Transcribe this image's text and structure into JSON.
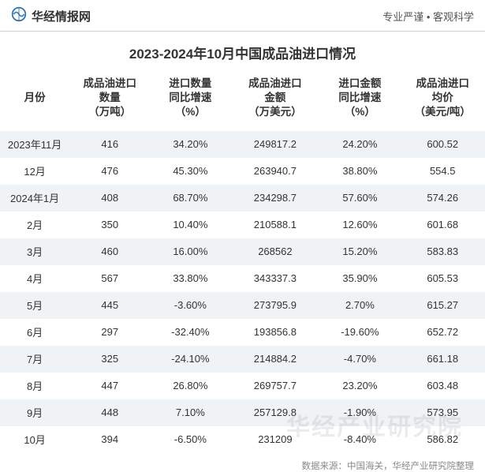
{
  "header": {
    "brand": "华经情报网",
    "slogan": "专业严谨  •  客观科学",
    "logo_stroke": "#2b6cb0",
    "logo_fill": "#3182ce"
  },
  "title": "2023-2024年10月中国成品油进口情况",
  "columns": [
    "月份",
    "成品油进口\n数量\n（万吨）",
    "进口数量\n同比增速\n（%）",
    "成品油进口\n金额\n（万美元）",
    "进口金额\n同比增速\n（%）",
    "成品油进口\n均价\n（美元/吨）"
  ],
  "rows": [
    {
      "month": "2023年11月",
      "qty": "416",
      "qty_g": "34.20%",
      "qty_g_neg": false,
      "amt": "249817.2",
      "amt_g": "24.20%",
      "amt_g_neg": false,
      "price": "600.52"
    },
    {
      "month": "12月",
      "qty": "476",
      "qty_g": "45.30%",
      "qty_g_neg": false,
      "amt": "263940.7",
      "amt_g": "38.80%",
      "amt_g_neg": false,
      "price": "554.5"
    },
    {
      "month": "2024年1月",
      "qty": "408",
      "qty_g": "68.70%",
      "qty_g_neg": false,
      "amt": "234298.7",
      "amt_g": "57.60%",
      "amt_g_neg": false,
      "price": "574.26"
    },
    {
      "month": "2月",
      "qty": "350",
      "qty_g": "10.40%",
      "qty_g_neg": false,
      "amt": "210588.1",
      "amt_g": "12.60%",
      "amt_g_neg": false,
      "price": "601.68"
    },
    {
      "month": "3月",
      "qty": "460",
      "qty_g": "16.00%",
      "qty_g_neg": false,
      "amt": "268562",
      "amt_g": "15.20%",
      "amt_g_neg": false,
      "price": "583.83"
    },
    {
      "month": "4月",
      "qty": "567",
      "qty_g": "33.80%",
      "qty_g_neg": false,
      "amt": "343337.3",
      "amt_g": "35.90%",
      "amt_g_neg": false,
      "price": "605.53"
    },
    {
      "month": "5月",
      "qty": "445",
      "qty_g": "-3.60%",
      "qty_g_neg": true,
      "amt": "273795.9",
      "amt_g": "2.70%",
      "amt_g_neg": false,
      "price": "615.27"
    },
    {
      "month": "6月",
      "qty": "297",
      "qty_g": "-32.40%",
      "qty_g_neg": true,
      "amt": "193856.8",
      "amt_g": "-19.60%",
      "amt_g_neg": true,
      "price": "652.72"
    },
    {
      "month": "7月",
      "qty": "325",
      "qty_g": "-24.10%",
      "qty_g_neg": true,
      "amt": "214884.2",
      "amt_g": "-4.70%",
      "amt_g_neg": true,
      "price": "661.18"
    },
    {
      "month": "8月",
      "qty": "447",
      "qty_g": "26.80%",
      "qty_g_neg": false,
      "amt": "269757.7",
      "amt_g": "23.20%",
      "amt_g_neg": false,
      "price": "603.48"
    },
    {
      "month": "9月",
      "qty": "448",
      "qty_g": "7.10%",
      "qty_g_neg": false,
      "amt": "257129.8",
      "amt_g": "-1.90%",
      "amt_g_neg": true,
      "price": "573.95"
    },
    {
      "month": "10月",
      "qty": "394",
      "qty_g": "-6.50%",
      "qty_g_neg": true,
      "amt": "231209",
      "amt_g": "-8.40%",
      "amt_g_neg": true,
      "price": "586.82"
    }
  ],
  "footer": "数据来源：中国海关，华经产业研究院整理",
  "watermark": "华经产业研究院",
  "colors": {
    "row_stripe": "#f0f3f6",
    "negative": "#3b6fb5",
    "text": "#333333",
    "muted": "#888888",
    "border": "#d0d0d0"
  },
  "fonts": {
    "title_size": 17,
    "header_size": 13.5,
    "cell_size": 13,
    "footer_size": 11.5
  }
}
